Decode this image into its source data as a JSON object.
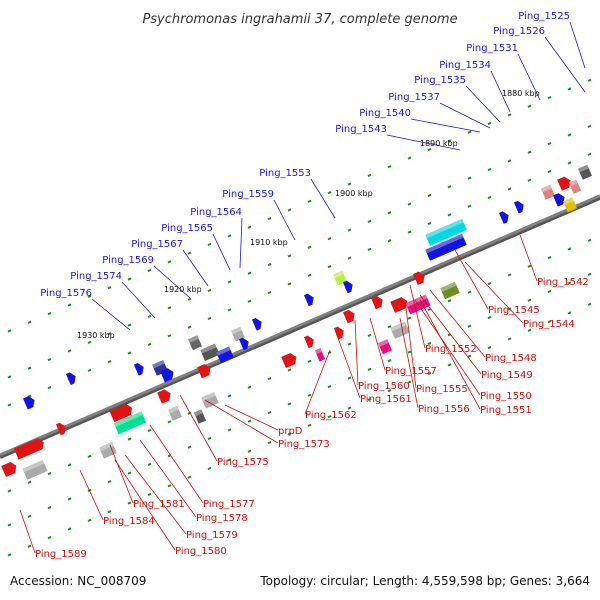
{
  "title": "Psychromonas ingrahamii 37, complete genome",
  "accession_text": "Accession: NC_008709",
  "summary_text": "Topology: circular; Length: 4,559,598 bp; Genes: 3,664",
  "ticks": [
    "1880 kbp",
    "1890 kbp",
    "1900 kbp",
    "1910 kbp",
    "1920 kbp",
    "1930 kbp"
  ],
  "genes_upper": [
    "Ping_1525",
    "Ping_1526",
    "Ping_1531",
    "Ping_1534",
    "Ping_1535",
    "Ping_1537",
    "Ping_1540",
    "Ping_1543",
    "Ping_1553",
    "Ping_1559",
    "Ping_1564",
    "Ping_1565",
    "Ping_1567",
    "Ping_1569",
    "Ping_1574",
    "Ping_1576"
  ],
  "genes_lower": [
    "Ping_1542",
    "Ping_1545",
    "Ping_1544",
    "Ping_1552",
    "Ping_1548",
    "Ping_1549",
    "Ping_1557",
    "Ping_1560",
    "Ping_1555",
    "Ping_1550",
    "Ping_1561",
    "Ping_1556",
    "Ping_1551",
    "Ping_1562",
    "prpD",
    "Ping_1573",
    "Ping_1575",
    "Ping_1577",
    "Ping_1581",
    "Ping_1578",
    "Ping_1584",
    "Ping_1579",
    "Ping_1580",
    "Ping_1589"
  ],
  "colors": {
    "backbone": "#7f7f7f",
    "forward_genes": "#1414e0",
    "reverse_genes": "#e01414",
    "tick_marks": "#228822",
    "label_upper": "#1a1ad0",
    "label_lower": "#d01010"
  }
}
